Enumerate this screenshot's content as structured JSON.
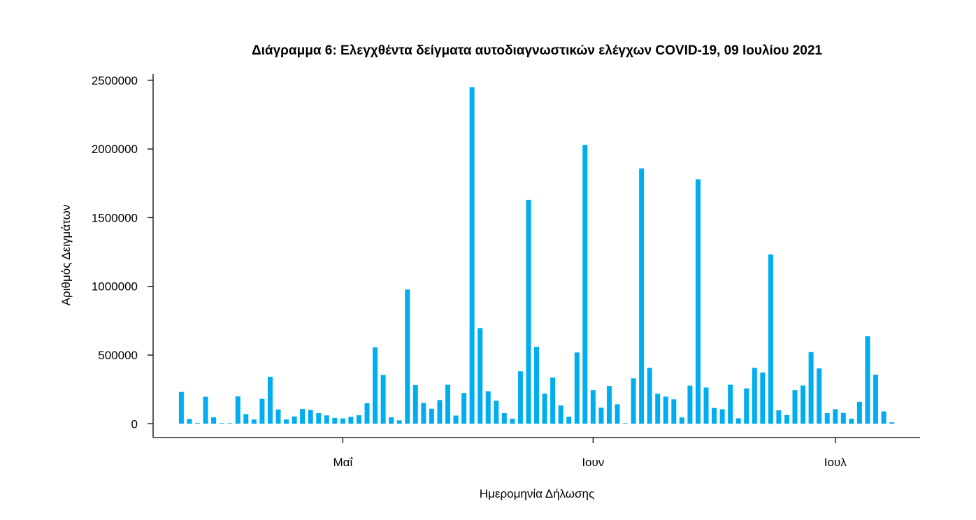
{
  "chart_data": {
    "type": "bar",
    "title": "Διάγραμμα 6: Ελεγχθέντα δείγματα αυτοδιαγνωστικών ελέγχων COVID-19, 09 Ιουλίου 2021",
    "xlabel": "Ημερομηνία Δήλωσης",
    "ylabel": "Αριθμός Δειγμάτων",
    "bar_color": "#00aeef",
    "grid": false,
    "legend": false,
    "xlim": [
      "2021-04-07 12:00",
      "2021-07-11 12:00"
    ],
    "ylim": [
      -100000,
      2545000
    ],
    "y_ticks": [
      0,
      500000,
      1000000,
      1500000,
      2000000,
      2500000
    ],
    "x_ticks": [
      {
        "label": "Μαΐ",
        "date": "2021-05-01"
      },
      {
        "label": "Ιουν",
        "date": "2021-06-01"
      },
      {
        "label": "Ιουλ",
        "date": "2021-07-01"
      }
    ],
    "x": [
      "2021-04-11",
      "2021-04-12",
      "2021-04-13",
      "2021-04-14",
      "2021-04-15",
      "2021-04-16",
      "2021-04-17",
      "2021-04-18",
      "2021-04-19",
      "2021-04-20",
      "2021-04-21",
      "2021-04-22",
      "2021-04-23",
      "2021-04-24",
      "2021-04-25",
      "2021-04-26",
      "2021-04-27",
      "2021-04-28",
      "2021-04-29",
      "2021-04-30",
      "2021-05-01",
      "2021-05-02",
      "2021-05-03",
      "2021-05-04",
      "2021-05-05",
      "2021-05-06",
      "2021-05-07",
      "2021-05-08",
      "2021-05-09",
      "2021-05-10",
      "2021-05-11",
      "2021-05-12",
      "2021-05-13",
      "2021-05-14",
      "2021-05-15",
      "2021-05-16",
      "2021-05-17",
      "2021-05-18",
      "2021-05-19",
      "2021-05-20",
      "2021-05-21",
      "2021-05-22",
      "2021-05-23",
      "2021-05-24",
      "2021-05-25",
      "2021-05-26",
      "2021-05-27",
      "2021-05-28",
      "2021-05-29",
      "2021-05-30",
      "2021-05-31",
      "2021-06-01",
      "2021-06-02",
      "2021-06-03",
      "2021-06-04",
      "2021-06-05",
      "2021-06-06",
      "2021-06-07",
      "2021-06-08",
      "2021-06-09",
      "2021-06-10",
      "2021-06-11",
      "2021-06-12",
      "2021-06-13",
      "2021-06-14",
      "2021-06-15",
      "2021-06-16",
      "2021-06-17",
      "2021-06-18",
      "2021-06-19",
      "2021-06-20",
      "2021-06-21",
      "2021-06-22",
      "2021-06-23",
      "2021-06-24",
      "2021-06-25",
      "2021-06-26",
      "2021-06-27",
      "2021-06-28",
      "2021-06-29",
      "2021-06-30",
      "2021-07-01",
      "2021-07-02",
      "2021-07-03",
      "2021-07-04",
      "2021-07-05",
      "2021-07-06",
      "2021-07-07",
      "2021-07-08"
    ],
    "values": [
      232000,
      35000,
      6000,
      197000,
      47000,
      3000,
      1500,
      199000,
      70000,
      31000,
      182000,
      342000,
      104000,
      31000,
      53000,
      108000,
      101000,
      78000,
      61000,
      43000,
      39000,
      50000,
      62000,
      150000,
      556000,
      355000,
      47000,
      25000,
      977000,
      282000,
      152000,
      110000,
      173000,
      284000,
      60000,
      224000,
      2450000,
      697000,
      236000,
      168000,
      78000,
      37000,
      382000,
      1630000,
      560000,
      219000,
      336000,
      133000,
      51000,
      519000,
      2030000,
      245000,
      117000,
      275000,
      142000,
      2000,
      331000,
      1858000,
      407000,
      219000,
      198000,
      178000,
      46000,
      278000,
      1780000,
      264000,
      115000,
      106000,
      284000,
      40000,
      258000,
      407000,
      373000,
      1232000,
      98000,
      64000,
      245000,
      279000,
      522000,
      403000,
      78000,
      106000,
      80000,
      37000,
      160000,
      637000,
      357000,
      90000,
      11000
    ]
  }
}
